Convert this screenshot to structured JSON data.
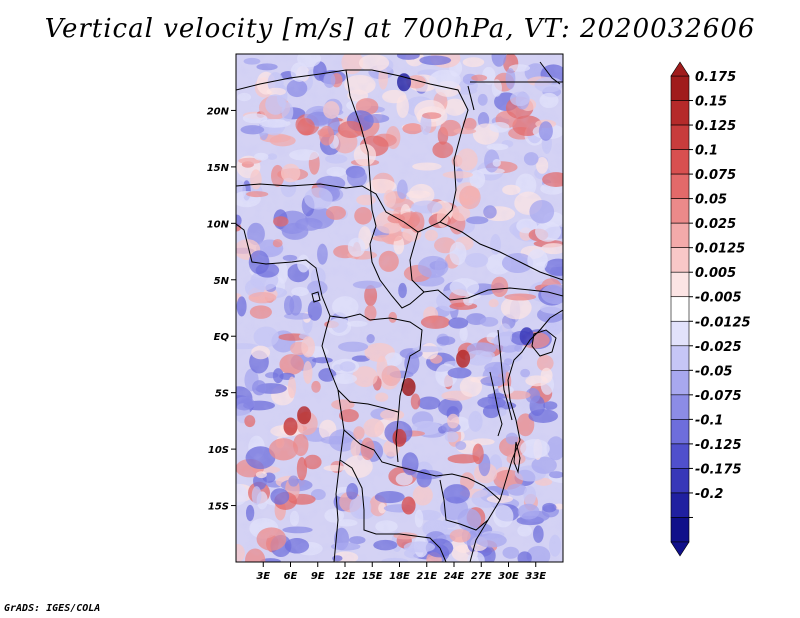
{
  "title": "Vertical velocity [m/s] at 700hPa, VT: 2020032606",
  "footer": "GrADS: IGES/COLA",
  "chart_data": {
    "type": "heatmap",
    "title": "Vertical velocity [m/s] at 700hPa, VT: 2020032606",
    "variable": "Vertical velocity",
    "units": "m/s",
    "level": "700hPa",
    "valid_time": "2020032606",
    "x_range": [
      0,
      36
    ],
    "y_range": [
      -20,
      25
    ],
    "x_ticks": [
      3,
      6,
      9,
      12,
      15,
      18,
      21,
      24,
      27,
      30,
      33
    ],
    "x_tick_labels": [
      "3E",
      "6E",
      "9E",
      "12E",
      "15E",
      "18E",
      "21E",
      "24E",
      "27E",
      "30E",
      "33E"
    ],
    "y_ticks": [
      20,
      15,
      10,
      5,
      0,
      -5,
      -10,
      -15
    ],
    "y_tick_labels": [
      "20N",
      "15N",
      "10N",
      "5N",
      "EQ",
      "5S",
      "10S",
      "15S"
    ],
    "colorbar": {
      "levels": [
        "0.175",
        "0.15",
        "0.125",
        "0.1",
        "0.075",
        "0.05",
        "0.025",
        "0.0125",
        "0.005",
        "-0.005",
        "-0.0125",
        "-0.025",
        "-0.05",
        "-0.075",
        "-0.1",
        "-0.125",
        "-0.175",
        "-0.2"
      ],
      "colors": [
        "#a01c1c",
        "#b52a2a",
        "#c83c3c",
        "#d85050",
        "#e36a6a",
        "#ec8a8a",
        "#f3aaaa",
        "#f8c8c8",
        "#fce4e4",
        "#ffffff",
        "#e2e2fb",
        "#c6c6f6",
        "#a8a8ef",
        "#8c8ce6",
        "#6e6edb",
        "#5050cc",
        "#3838b8",
        "#2020a0",
        "#10108a"
      ],
      "top_arrow_color": "#a01c1c",
      "bottom_arrow_color": "#10108a"
    },
    "features": [
      {
        "region": "western Sahel 8N-12N, 15E-23E",
        "sign": "upward (positive)",
        "strength": "moderate"
      },
      {
        "region": "Angola plateau 7S-10S, 4E-10E",
        "sign": "upward (positive)",
        "strength": "strong"
      },
      {
        "region": "Congo basin 5S, 19E",
        "sign": "upward (positive)",
        "strength": "strong"
      },
      {
        "region": "Atlantic off Gabon 0-5S, 0-6E",
        "sign": "downward (negative)",
        "strength": "moderate"
      },
      {
        "region": "East Africa 0-5S, 27E-34E",
        "sign": "downward (negative)",
        "strength": "moderate"
      }
    ]
  }
}
